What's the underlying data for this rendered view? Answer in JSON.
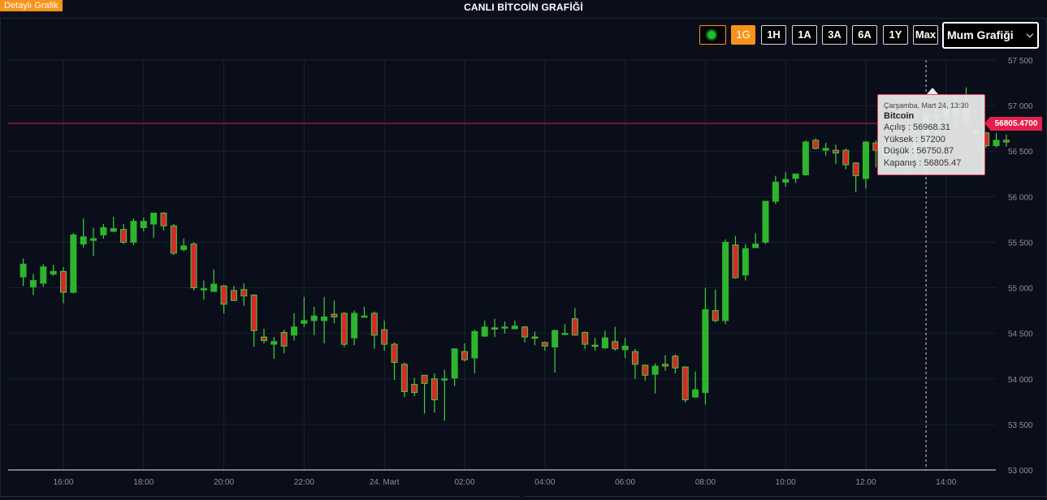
{
  "header": {
    "detail_tab": "Detaylı Grafik",
    "title": "CANLI BİTCOİN GRAFİĞİ"
  },
  "controls": {
    "live_indicator": "live-dot-icon",
    "ranges": [
      "1G",
      "1H",
      "1A",
      "3A",
      "6A",
      "1Y",
      "Max"
    ],
    "active_range": "1G",
    "chart_type": "Mum Grafiği"
  },
  "current_price": "56805.4700",
  "tooltip": {
    "date": "Çarşamba, Mart 24, 13:30",
    "name": "Bitcoin",
    "open": "Açılış : 56968.31",
    "high": "Yüksek : 57200",
    "low": "Düşük : 56750.87",
    "close": "Kapanış : 56805.47"
  },
  "colors": {
    "background": "#0a0e1a",
    "up": "#2db52d",
    "down": "#d42a2a",
    "wick_up": "#3ecf3e",
    "accent": "#f7931a",
    "price_line": "#e4204a",
    "grid": "#1b2130"
  },
  "chart_data": {
    "type": "candlestick",
    "ylim": [
      53000,
      57500
    ],
    "yticks": [
      "57 500",
      "57 000",
      "56 500",
      "56 000",
      "55 500",
      "55 000",
      "54 500",
      "54 000",
      "53 500",
      "53 000"
    ],
    "yticks_values": [
      57500,
      57000,
      56500,
      56000,
      55500,
      55000,
      54500,
      54000,
      53500,
      53000
    ],
    "xticks": [
      "16:00",
      "18:00",
      "20:00",
      "22:00",
      "24. Mart",
      "02:00",
      "04:00",
      "06:00",
      "08:00",
      "10:00",
      "12:00",
      "14:00"
    ],
    "xticks_hours": [
      16,
      18,
      20,
      22,
      24,
      26,
      28,
      30,
      32,
      34,
      36,
      38
    ],
    "interval_minutes": 15,
    "first_candle_hour": 15.0,
    "current_price": 56805.47,
    "hover_hour": 37.5,
    "candles": [
      [
        55120,
        55260,
        55320,
        55020
      ],
      [
        55010,
        55080,
        55150,
        54920
      ],
      [
        55050,
        55230,
        55260,
        55010
      ],
      [
        55150,
        55180,
        55250,
        55130
      ],
      [
        55180,
        54950,
        55230,
        54830
      ],
      [
        54950,
        55580,
        55600,
        54940
      ],
      [
        55480,
        55560,
        55760,
        55440
      ],
      [
        55520,
        55540,
        55660,
        55350
      ],
      [
        55580,
        55660,
        55700,
        55540
      ],
      [
        55620,
        55650,
        55780,
        55610
      ],
      [
        55640,
        55500,
        55700,
        55480
      ],
      [
        55500,
        55730,
        55760,
        55470
      ],
      [
        55660,
        55730,
        55770,
        55620
      ],
      [
        55700,
        55820,
        55820,
        55550
      ],
      [
        55820,
        55680,
        55830,
        55630
      ],
      [
        55680,
        55380,
        55700,
        55360
      ],
      [
        55420,
        55460,
        55540,
        55400
      ],
      [
        55480,
        55000,
        55500,
        54970
      ],
      [
        54990,
        54990,
        55080,
        54870
      ],
      [
        54960,
        55040,
        55200,
        54990
      ],
      [
        55020,
        54820,
        55030,
        54720
      ],
      [
        54970,
        54860,
        55020,
        54860
      ],
      [
        54980,
        54910,
        55050,
        54800
      ],
      [
        54920,
        54530,
        54930,
        54350
      ],
      [
        54460,
        54420,
        54550,
        54390
      ],
      [
        54380,
        54410,
        54460,
        54220
      ],
      [
        54510,
        54360,
        54540,
        54280
      ],
      [
        54480,
        54570,
        54720,
        54420
      ],
      [
        54610,
        54640,
        54900,
        54570
      ],
      [
        54640,
        54690,
        54790,
        54480
      ],
      [
        54640,
        54680,
        54900,
        54390
      ],
      [
        54710,
        54680,
        54860,
        54610
      ],
      [
        54720,
        54380,
        54730,
        54350
      ],
      [
        54450,
        54720,
        54750,
        54370
      ],
      [
        54690,
        54690,
        54790,
        54690
      ],
      [
        54720,
        54480,
        54740,
        54330
      ],
      [
        54540,
        54380,
        54640,
        54310
      ],
      [
        54380,
        54180,
        54400,
        53990
      ],
      [
        54160,
        53860,
        54180,
        53800
      ],
      [
        53940,
        53850,
        54010,
        53810
      ],
      [
        54040,
        53950,
        54000,
        53620
      ],
      [
        54000,
        53770,
        54060,
        53630
      ],
      [
        53990,
        54000,
        54100,
        53540
      ],
      [
        54010,
        54330,
        54330,
        53920
      ],
      [
        54300,
        54210,
        54390,
        54190
      ],
      [
        54230,
        54520,
        54540,
        54060
      ],
      [
        54470,
        54570,
        54640,
        54460
      ],
      [
        54560,
        54550,
        54660,
        54460
      ],
      [
        54560,
        54570,
        54630,
        54500
      ],
      [
        54550,
        54580,
        54640,
        54550
      ],
      [
        54570,
        54460,
        54580,
        54400
      ],
      [
        54460,
        54450,
        54520,
        54370
      ],
      [
        54400,
        54360,
        54410,
        54310
      ],
      [
        54350,
        54530,
        54540,
        54070
      ],
      [
        54500,
        54500,
        54600,
        54490
      ],
      [
        54660,
        54480,
        54780,
        54480
      ],
      [
        54510,
        54380,
        54520,
        54330
      ],
      [
        54370,
        54360,
        54450,
        54310
      ],
      [
        54340,
        54450,
        54530,
        54330
      ],
      [
        54410,
        54330,
        54570,
        54310
      ],
      [
        54320,
        54360,
        54450,
        54230
      ],
      [
        54300,
        54160,
        54330,
        54000
      ],
      [
        54150,
        54040,
        54160,
        53980
      ],
      [
        54050,
        54140,
        54170,
        53840
      ],
      [
        54160,
        54140,
        54260,
        54090
      ],
      [
        54250,
        54120,
        54270,
        54060
      ],
      [
        54130,
        53770,
        54140,
        53740
      ],
      [
        53800,
        53880,
        54080,
        53810
      ],
      [
        53850,
        54760,
        55000,
        53720
      ],
      [
        54750,
        54640,
        54980,
        54620
      ],
      [
        54640,
        55500,
        55530,
        54600
      ],
      [
        55470,
        55110,
        55570,
        55100
      ],
      [
        55140,
        55430,
        55480,
        55080
      ],
      [
        55440,
        55480,
        55600,
        55440
      ],
      [
        55500,
        55950,
        55950,
        55480
      ],
      [
        55950,
        56160,
        56230,
        55920
      ],
      [
        56160,
        56190,
        56270,
        56110
      ],
      [
        56200,
        56250,
        56250,
        56150
      ],
      [
        56240,
        56600,
        56620,
        56230
      ],
      [
        56620,
        56530,
        56640,
        56520
      ],
      [
        56510,
        56530,
        56590,
        56450
      ],
      [
        56510,
        56480,
        56570,
        56360
      ],
      [
        56510,
        56350,
        56530,
        56300
      ],
      [
        56370,
        56230,
        56380,
        56050
      ],
      [
        56200,
        56600,
        56610,
        56090
      ],
      [
        56590,
        56510,
        56620,
        56320
      ],
      [
        56460,
        56500,
        56570,
        56310
      ],
      [
        56470,
        56480,
        56480,
        56460
      ],
      [
        56470,
        56480,
        56540,
        56280
      ],
      [
        56500,
        56580,
        56610,
        56290
      ],
      [
        56550,
        56900,
        57030,
        56550
      ],
      [
        56870,
        56890,
        56980,
        56580
      ],
      [
        56880,
        56960,
        57030,
        56800
      ],
      [
        56900,
        56970,
        57110,
        56750
      ],
      [
        56968.31,
        56805.47,
        57200,
        56750.87
      ],
      [
        56720,
        56700,
        56750,
        56600
      ],
      [
        56700,
        56560,
        56710,
        56540
      ],
      [
        56560,
        56620,
        56700,
        56540
      ],
      [
        56620,
        56600,
        56680,
        56550
      ]
    ]
  }
}
